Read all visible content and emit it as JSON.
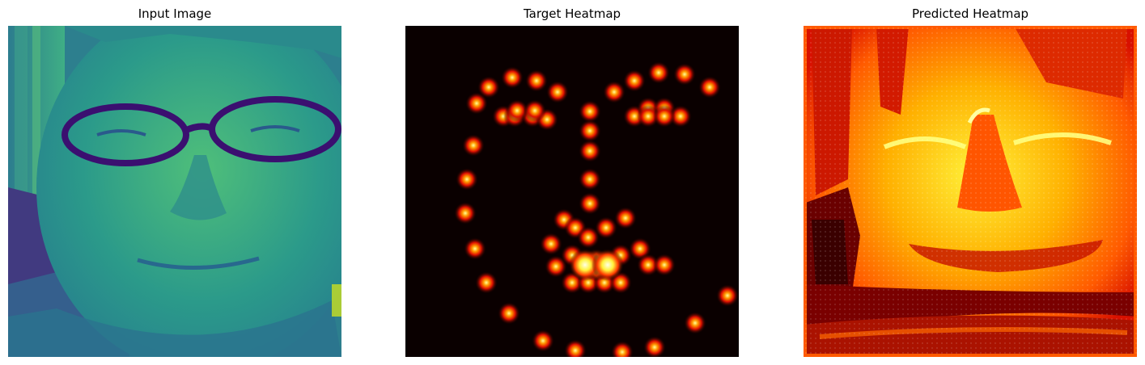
{
  "figure": {
    "panels": [
      {
        "title": "Input Image",
        "kind": "grayscale-viridis-photo"
      },
      {
        "title": "Target Heatmap",
        "kind": "landmark-heatmap",
        "colormap": "hot"
      },
      {
        "title": "Predicted Heatmap",
        "kind": "predicted-heatmap",
        "colormap": "hot"
      }
    ]
  },
  "colors": {
    "viridis_dark": "#3b0f70",
    "viridis_mid": "#2a9c8a",
    "viridis_light": "#9bd65a",
    "hot_black": "#0a0000",
    "hot_red": "#e81000",
    "hot_orange": "#ff7a00",
    "hot_yellow": "#fff23a",
    "hot_white": "#ffffe6"
  }
}
